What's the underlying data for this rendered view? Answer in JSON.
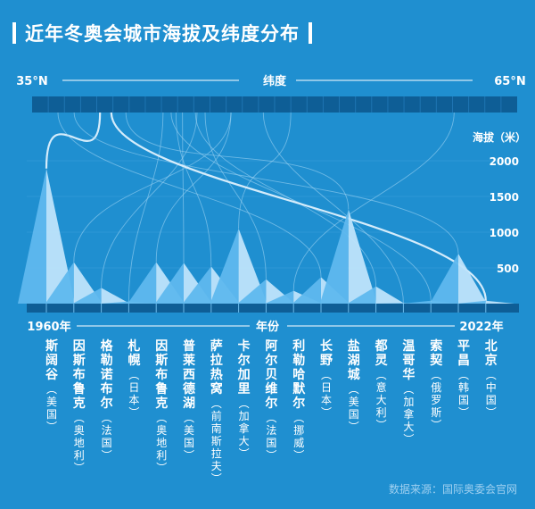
{
  "chart_data": {
    "type": "area",
    "title": "近年冬奥会城市海拔及纬度分布",
    "source": "数据来源：国际奥委会官网",
    "lat_axis": {
      "label": "纬度",
      "min_label": "35°N",
      "max_label": "65°N",
      "min": 35,
      "max": 65
    },
    "alt_axis": {
      "label": "海拔（米）",
      "ticks": [
        500,
        1000,
        1500,
        2000
      ],
      "max": 2300
    },
    "year_axis": {
      "label": "年份",
      "start_label": "1960年",
      "end_label": "2022年"
    },
    "colors": {
      "background": "#1f8fd0",
      "band": "#0e5e96",
      "peak_light": "#bfe4fb",
      "peak_shade": "#5fb8ee",
      "line": "#9fd3f3",
      "highlight": "#dff1fd"
    },
    "cities": [
      {
        "name": "斯阔谷",
        "country": "美国",
        "altitude": 1890,
        "latitude": 39.2
      },
      {
        "name": "因斯布鲁克",
        "country": "奥地利",
        "altitude": 580,
        "latitude": 47.3
      },
      {
        "name": "格勒诺布尔",
        "country": "法国",
        "altitude": 220,
        "latitude": 45.2
      },
      {
        "name": "札幌",
        "country": "日本",
        "altitude": 30,
        "latitude": 43.1
      },
      {
        "name": "因斯布鲁克",
        "country": "奥地利",
        "altitude": 580,
        "latitude": 47.3
      },
      {
        "name": "普莱西德湖",
        "country": "美国",
        "altitude": 570,
        "latitude": 44.3
      },
      {
        "name": "萨拉热窝",
        "country": "前南斯拉夫",
        "altitude": 520,
        "latitude": 43.9
      },
      {
        "name": "卡尔加里",
        "country": "加拿大",
        "altitude": 1050,
        "latitude": 51.0
      },
      {
        "name": "阿尔贝维尔",
        "country": "法国",
        "altitude": 340,
        "latitude": 45.7
      },
      {
        "name": "利勒哈默尔",
        "country": "挪威",
        "altitude": 180,
        "latitude": 61.1
      },
      {
        "name": "长野",
        "country": "日本",
        "altitude": 370,
        "latitude": 36.6
      },
      {
        "name": "盐湖城",
        "country": "美国",
        "altitude": 1320,
        "latitude": 40.8
      },
      {
        "name": "都灵",
        "country": "意大利",
        "altitude": 240,
        "latitude": 45.1
      },
      {
        "name": "温哥华",
        "country": "加拿大",
        "altitude": 0,
        "latitude": 49.3
      },
      {
        "name": "索契",
        "country": "俄罗斯",
        "altitude": 40,
        "latitude": 43.6
      },
      {
        "name": "平昌",
        "country": "韩国",
        "altitude": 700,
        "latitude": 37.6
      },
      {
        "name": "北京",
        "country": "中国",
        "altitude": 40,
        "latitude": 39.9
      }
    ]
  }
}
